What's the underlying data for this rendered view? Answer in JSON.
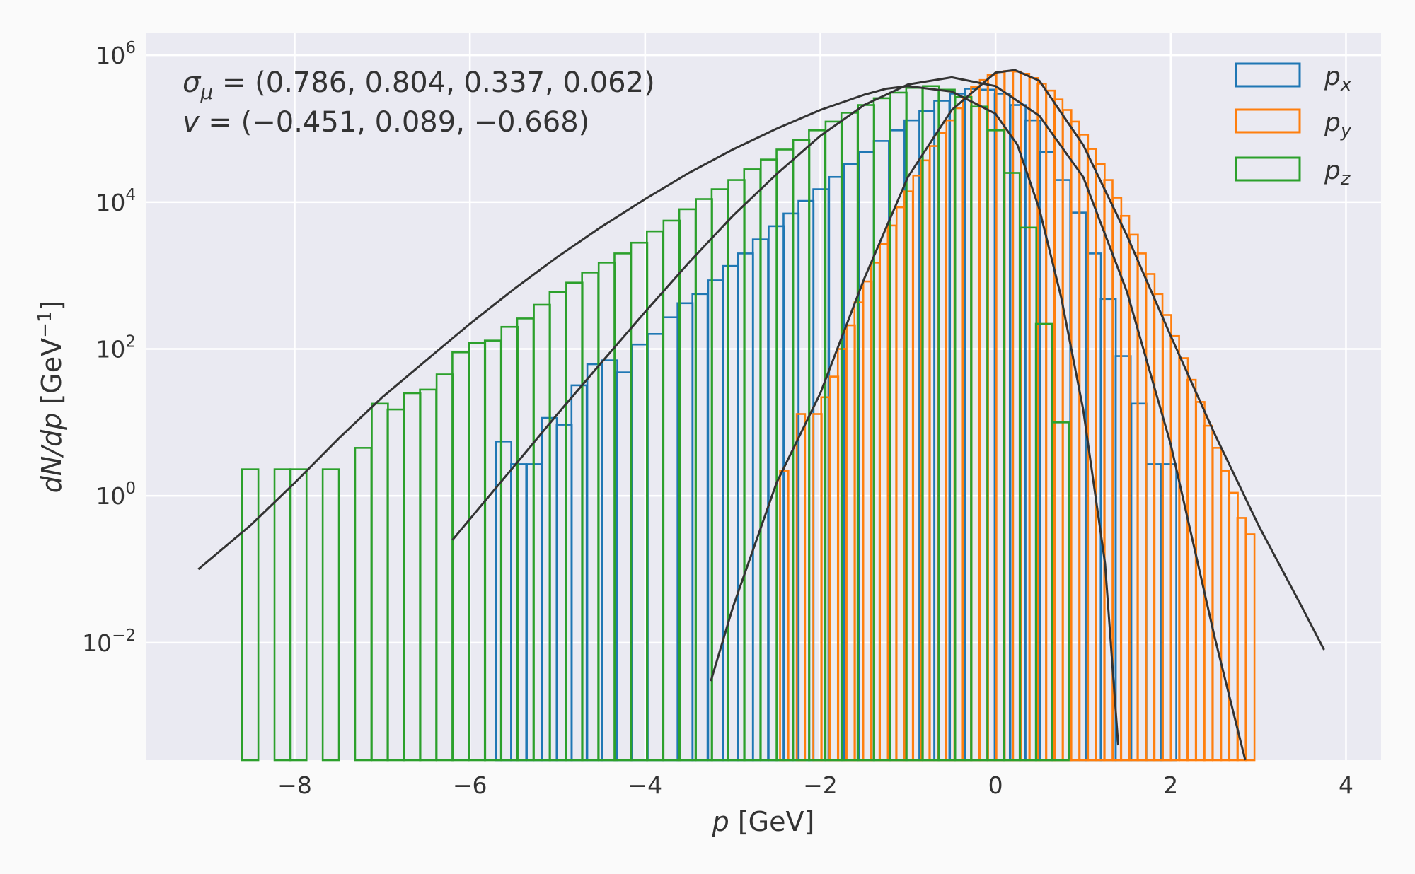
{
  "chart_data": {
    "type": "histogram",
    "xlabel": {
      "var": "p",
      "rest": " [GeV]"
    },
    "ylabel": {
      "var": "dN/dp",
      "rest": " [GeV",
      "sup": "−1",
      "close": "]"
    },
    "xlim": [
      -9.7,
      4.4
    ],
    "xticks": [
      -8,
      -6,
      -4,
      -2,
      0,
      2,
      4
    ],
    "xtick_labels": [
      "−8",
      "−6",
      "−4",
      "−2",
      "0",
      "2",
      "4"
    ],
    "yscale": "log",
    "ylim_log10": [
      -3.6,
      6.3
    ],
    "yticks": [
      {
        "value": 1000000,
        "base": "10",
        "exp": "6"
      },
      {
        "value": 10000,
        "base": "10",
        "exp": "4"
      },
      {
        "value": 100,
        "base": "10",
        "exp": "2"
      },
      {
        "value": 1,
        "base": "10",
        "exp": "0"
      },
      {
        "value": 0.01,
        "base": "10",
        "exp": "−2"
      }
    ],
    "grid": true,
    "legend_position": "top-right",
    "annotations": {
      "line1": {
        "sym": "σ",
        "sub": "μ",
        "rest": " = (0.786, 0.804, 0.337, 0.062)"
      },
      "line2": {
        "sym": "v",
        "rest": " = (−0.451, 0.089, −0.668)"
      }
    },
    "series": [
      {
        "name": "p",
        "name_sub": "x",
        "color": "#1f77b4",
        "bin_width": 0.1725,
        "bins": [
          [
            -5.7,
            5.5
          ],
          [
            -5.53,
            2.7
          ],
          [
            -5.35,
            2.7
          ],
          [
            -5.18,
            11.5
          ],
          [
            -5.01,
            9.3
          ],
          [
            -4.84,
            32
          ],
          [
            -4.66,
            62
          ],
          [
            -4.49,
            70
          ],
          [
            -4.32,
            48
          ],
          [
            -4.15,
            115
          ],
          [
            -3.97,
            160
          ],
          [
            -3.8,
            270
          ],
          [
            -3.63,
            420
          ],
          [
            -3.46,
            560
          ],
          [
            -3.28,
            860
          ],
          [
            -3.11,
            1350
          ],
          [
            -2.94,
            2000
          ],
          [
            -2.77,
            3100
          ],
          [
            -2.59,
            4700
          ],
          [
            -2.42,
            7000
          ],
          [
            -2.25,
            10400
          ],
          [
            -2.08,
            15000
          ],
          [
            -1.9,
            22000
          ],
          [
            -1.73,
            33000
          ],
          [
            -1.56,
            48000
          ],
          [
            -1.39,
            68000
          ],
          [
            -1.21,
            95000
          ],
          [
            -1.04,
            130000
          ],
          [
            -0.87,
            175000
          ],
          [
            -0.7,
            240000
          ],
          [
            -0.52,
            300000
          ],
          [
            -0.35,
            350000
          ],
          [
            -0.18,
            340000
          ],
          [
            -0.01,
            300000
          ],
          [
            0.17,
            210000
          ],
          [
            0.34,
            130000
          ],
          [
            0.51,
            48000
          ],
          [
            0.68,
            20000
          ],
          [
            0.86,
            7200
          ],
          [
            1.03,
            2000
          ],
          [
            1.2,
            480
          ],
          [
            1.37,
            80
          ],
          [
            1.55,
            18
          ],
          [
            1.72,
            2.7
          ],
          [
            1.89,
            2.7
          ]
        ],
        "fit_curve": [
          [
            -6.2,
            0.25
          ],
          [
            -5.5,
            2.5
          ],
          [
            -5.0,
            13
          ],
          [
            -4.5,
            65
          ],
          [
            -4.0,
            320
          ],
          [
            -3.5,
            1500
          ],
          [
            -3.0,
            6500
          ],
          [
            -2.5,
            24000
          ],
          [
            -2.0,
            80000
          ],
          [
            -1.5,
            210000
          ],
          [
            -1.0,
            400000
          ],
          [
            -0.5,
            500000
          ],
          [
            0.0,
            380000
          ],
          [
            0.5,
            150000
          ],
          [
            1.0,
            22000
          ],
          [
            1.5,
            600
          ],
          [
            2.0,
            5
          ],
          [
            2.5,
            0.012
          ],
          [
            2.85,
            8e-05
          ]
        ]
      },
      {
        "name": "p",
        "name_sub": "y",
        "color": "#ff7f0e",
        "bin_width": 0.0952,
        "bins": [
          [
            -2.75,
            0
          ],
          [
            -2.65,
            0
          ],
          [
            -2.56,
            0
          ],
          [
            -2.46,
            2.2
          ],
          [
            -2.37,
            0
          ],
          [
            -2.27,
            13
          ],
          [
            -2.18,
            0
          ],
          [
            -2.08,
            13
          ],
          [
            -1.99,
            22
          ],
          [
            -1.89,
            42
          ],
          [
            -1.8,
            100
          ],
          [
            -1.7,
            210
          ],
          [
            -1.61,
            430
          ],
          [
            -1.51,
            830
          ],
          [
            -1.42,
            1500
          ],
          [
            -1.32,
            2700
          ],
          [
            -1.23,
            4800
          ],
          [
            -1.13,
            8500
          ],
          [
            -1.04,
            14000
          ],
          [
            -0.94,
            23000
          ],
          [
            -0.85,
            37000
          ],
          [
            -0.75,
            58000
          ],
          [
            -0.66,
            88000
          ],
          [
            -0.56,
            130000
          ],
          [
            -0.47,
            190000
          ],
          [
            -0.37,
            270000
          ],
          [
            -0.28,
            370000
          ],
          [
            -0.18,
            460000
          ],
          [
            -0.09,
            540000
          ],
          [
            0.01,
            590000
          ],
          [
            0.1,
            610000
          ],
          [
            0.2,
            600000
          ],
          [
            0.29,
            560000
          ],
          [
            0.39,
            490000
          ],
          [
            0.48,
            410000
          ],
          [
            0.58,
            330000
          ],
          [
            0.67,
            250000
          ],
          [
            0.77,
            180000
          ],
          [
            0.86,
            125000
          ],
          [
            0.96,
            83000
          ],
          [
            1.05,
            53000
          ],
          [
            1.15,
            33000
          ],
          [
            1.24,
            20000
          ],
          [
            1.34,
            11500
          ],
          [
            1.43,
            6500
          ],
          [
            1.53,
            3600
          ],
          [
            1.62,
            2000
          ],
          [
            1.72,
            1050
          ],
          [
            1.81,
            560
          ],
          [
            1.91,
            290
          ],
          [
            2.0,
            150
          ],
          [
            2.1,
            75
          ],
          [
            2.19,
            38
          ],
          [
            2.29,
            19
          ],
          [
            2.38,
            9
          ],
          [
            2.48,
            4.5
          ],
          [
            2.57,
            2.2
          ],
          [
            2.67,
            1.1
          ],
          [
            2.76,
            0.5
          ],
          [
            2.86,
            0.3
          ],
          [
            2.95,
            0
          ],
          [
            3.05,
            0
          ],
          [
            3.14,
            0
          ],
          [
            3.24,
            0
          ]
        ],
        "fit_curve": [
          [
            -3.25,
            0.003
          ],
          [
            -3.0,
            0.03
          ],
          [
            -2.5,
            1.5
          ],
          [
            -2.0,
            25
          ],
          [
            -1.5,
            900
          ],
          [
            -1.0,
            22000
          ],
          [
            -0.5,
            180000
          ],
          [
            0.0,
            580000
          ],
          [
            0.22,
            630000
          ],
          [
            0.5,
            450000
          ],
          [
            1.0,
            60000
          ],
          [
            1.5,
            3500
          ],
          [
            2.0,
            150
          ],
          [
            2.5,
            7
          ],
          [
            3.0,
            0.4
          ],
          [
            3.5,
            0.03
          ],
          [
            3.75,
            0.008
          ]
        ]
      },
      {
        "name": "p",
        "name_sub": "z",
        "color": "#2ca02c",
        "bin_width": 0.185,
        "bins": [
          [
            -8.6,
            2.3
          ],
          [
            -8.42,
            0
          ],
          [
            -8.23,
            2.3
          ],
          [
            -8.05,
            2.3
          ],
          [
            -7.86,
            0
          ],
          [
            -7.68,
            2.3
          ],
          [
            -7.49,
            0
          ],
          [
            -7.31,
            4.5
          ],
          [
            -7.12,
            18
          ],
          [
            -6.94,
            15
          ],
          [
            -6.75,
            25
          ],
          [
            -6.57,
            28
          ],
          [
            -6.38,
            45
          ],
          [
            -6.2,
            90
          ],
          [
            -6.01,
            120
          ],
          [
            -5.83,
            130
          ],
          [
            -5.64,
            200
          ],
          [
            -5.46,
            260
          ],
          [
            -5.27,
            400
          ],
          [
            -5.09,
            600
          ],
          [
            -4.9,
            800
          ],
          [
            -4.72,
            1100
          ],
          [
            -4.53,
            1500
          ],
          [
            -4.35,
            2000
          ],
          [
            -4.16,
            2800
          ],
          [
            -3.98,
            4000
          ],
          [
            -3.79,
            5600
          ],
          [
            -3.61,
            8000
          ],
          [
            -3.42,
            11000
          ],
          [
            -3.24,
            15000
          ],
          [
            -3.05,
            20000
          ],
          [
            -2.87,
            28000
          ],
          [
            -2.68,
            38000
          ],
          [
            -2.5,
            52000
          ],
          [
            -2.31,
            70000
          ],
          [
            -2.13,
            95000
          ],
          [
            -1.94,
            125000
          ],
          [
            -1.76,
            165000
          ],
          [
            -1.57,
            210000
          ],
          [
            -1.39,
            260000
          ],
          [
            -1.2,
            310000
          ],
          [
            -1.02,
            360000
          ],
          [
            -0.83,
            380000
          ],
          [
            -0.65,
            340000
          ],
          [
            -0.46,
            270000
          ],
          [
            -0.28,
            200000
          ],
          [
            -0.09,
            95000
          ],
          [
            0.09,
            25000
          ],
          [
            0.28,
            4500
          ],
          [
            0.46,
            220
          ],
          [
            0.65,
            10
          ],
          [
            0.83,
            0
          ]
        ],
        "fit_curve": [
          [
            -9.1,
            0.1
          ],
          [
            -8.5,
            0.4
          ],
          [
            -8.0,
            1.5
          ],
          [
            -7.5,
            6
          ],
          [
            -7.0,
            22
          ],
          [
            -6.5,
            70
          ],
          [
            -6.0,
            220
          ],
          [
            -5.5,
            650
          ],
          [
            -5.0,
            1800
          ],
          [
            -4.5,
            4600
          ],
          [
            -4.0,
            11000
          ],
          [
            -3.5,
            25000
          ],
          [
            -3.0,
            52000
          ],
          [
            -2.5,
            100000
          ],
          [
            -2.0,
            180000
          ],
          [
            -1.5,
            290000
          ],
          [
            -1.25,
            350000
          ],
          [
            -1.0,
            380000
          ],
          [
            -0.5,
            320000
          ],
          [
            0.0,
            160000
          ],
          [
            0.25,
            60000
          ],
          [
            0.5,
            8000
          ],
          [
            0.75,
            500
          ],
          [
            1.0,
            15
          ],
          [
            1.25,
            0.12
          ],
          [
            1.4,
            0.0004
          ]
        ]
      }
    ]
  }
}
